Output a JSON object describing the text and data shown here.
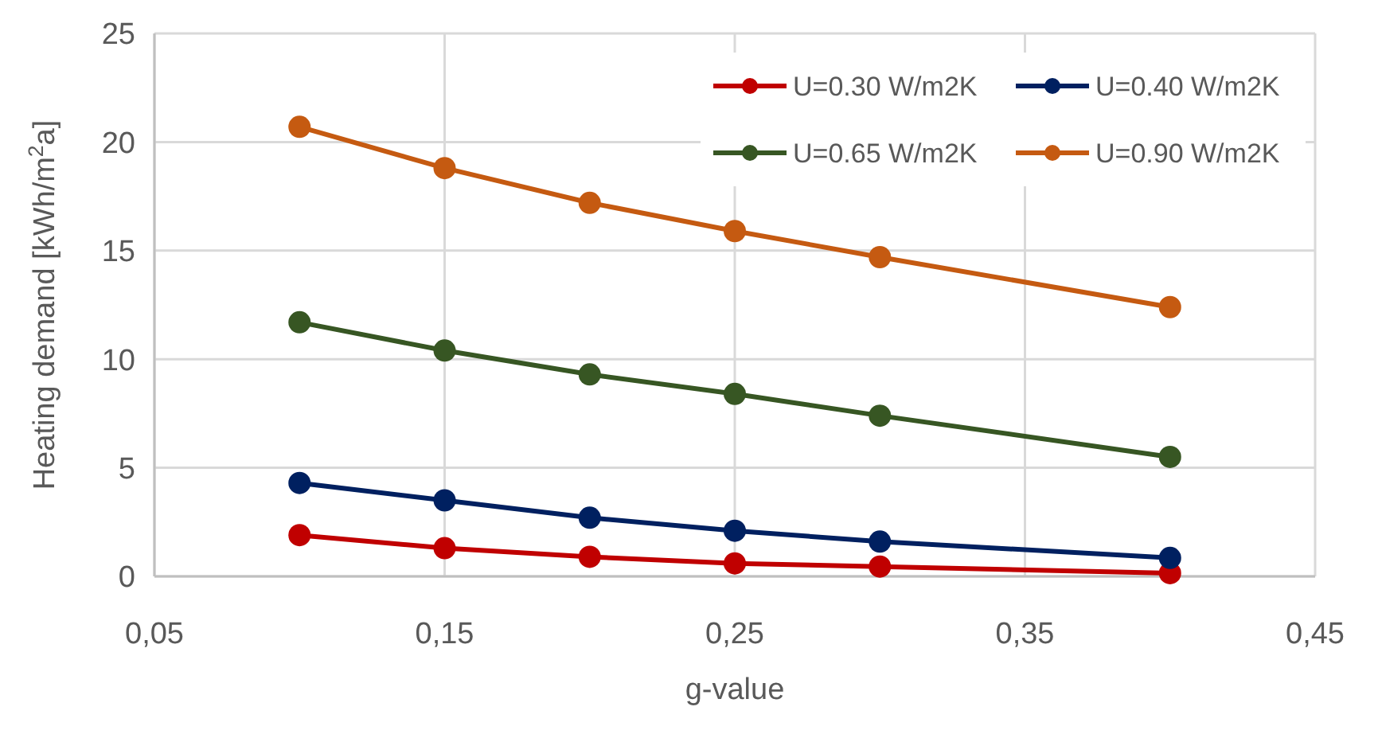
{
  "chart_data": {
    "type": "line",
    "xlabel": "g-value",
    "ylabel": "Heating demand [kWh/m$^{2}$a]",
    "x": [
      0.1,
      0.15,
      0.2,
      0.25,
      0.3,
      0.4
    ],
    "series": [
      {
        "name": "U=0.30 W/m2K",
        "color": "#c00000",
        "values": [
          1.9,
          1.3,
          0.9,
          0.6,
          0.45,
          0.15
        ]
      },
      {
        "name": "U=0.40 W/m2K",
        "color": "#002060",
        "values": [
          4.3,
          3.5,
          2.7,
          2.1,
          1.6,
          0.85
        ]
      },
      {
        "name": "U=0.65 W/m2K",
        "color": "#375623",
        "values": [
          11.7,
          10.4,
          9.3,
          8.4,
          7.4,
          5.5
        ]
      },
      {
        "name": "U=0.90 W/m2K",
        "color": "#c55a11",
        "values": [
          20.7,
          18.8,
          17.2,
          15.9,
          14.7,
          12.4
        ]
      }
    ],
    "xlim": [
      0.05,
      0.45
    ],
    "xticks": [
      {
        "value": 0.05,
        "label": "0,05"
      },
      {
        "value": 0.15,
        "label": "0,15"
      },
      {
        "value": 0.25,
        "label": "0,25"
      },
      {
        "value": 0.35,
        "label": "0,35"
      },
      {
        "value": 0.45,
        "label": "0,45"
      }
    ],
    "ylim": [
      0,
      25
    ],
    "yticks": [
      0,
      5,
      10,
      15,
      20,
      25
    ],
    "grid": true,
    "legend": "top right",
    "marker": "circle",
    "line_style": "solid"
  }
}
